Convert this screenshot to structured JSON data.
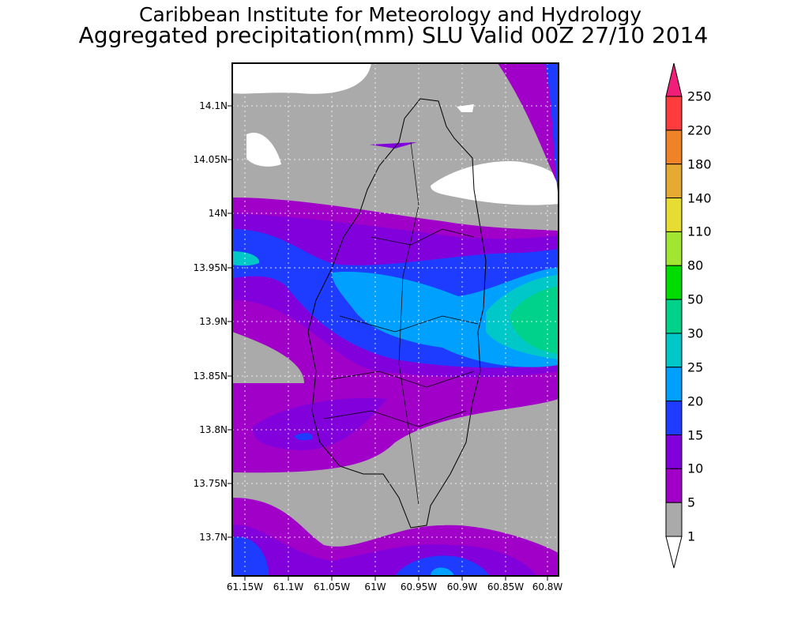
{
  "title": "Caribbean Institute for Meteorology and Hydrology",
  "subtitle": "Aggregated precipitation(mm) SLU Valid 00Z 27/10 2014",
  "lat_ticks": [
    "14.1N",
    "14.05N",
    "14N",
    "13.95N",
    "13.9N",
    "13.85N",
    "13.8N",
    "13.75N",
    "13.7N"
  ],
  "lon_ticks": [
    "61.15W",
    "61.1W",
    "61.05W",
    "61W",
    "60.95W",
    "60.9W",
    "60.85W",
    "60.8W"
  ],
  "colorbar": {
    "levels": [
      "250",
      "220",
      "180",
      "140",
      "110",
      "80",
      "50",
      "30",
      "25",
      "20",
      "15",
      "10",
      "5",
      "1"
    ],
    "colors": [
      "#f01e78",
      "#ff3c3c",
      "#f08228",
      "#e6aa32",
      "#e6dc32",
      "#a0e632",
      "#00dc00",
      "#00d28c",
      "#00c8c8",
      "#00a0ff",
      "#1e3cff",
      "#8200dc",
      "#a000c8",
      "#aaaaaa",
      "#ffffff"
    ]
  }
}
